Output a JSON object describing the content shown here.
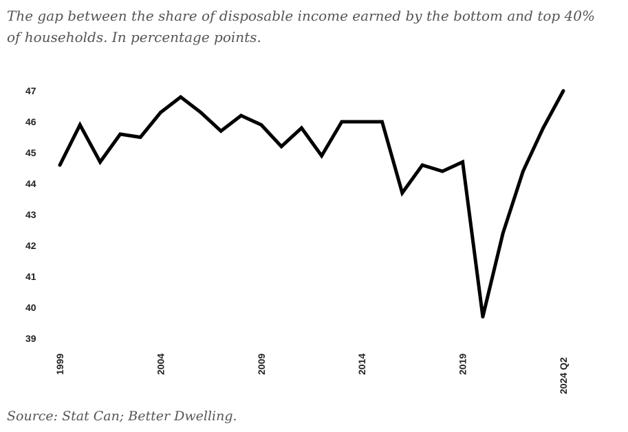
{
  "chart_data": {
    "type": "line",
    "title": "The gap between the share of disposable income earned by the bottom and top 40% of households. In percentage points.",
    "source": "Source: Stat Can; Better Dwelling.",
    "xlabel": "",
    "ylabel": "",
    "ylim": [
      39,
      47
    ],
    "yticks": [
      "47",
      "46",
      "45",
      "44",
      "43",
      "42",
      "41",
      "40",
      "39"
    ],
    "xtick_labels": [
      "1999",
      "2004",
      "2009",
      "2014",
      "2019",
      "2024 Q2"
    ],
    "grid": false,
    "legend": "none",
    "line_color": "#000000",
    "x": [
      1999,
      2000,
      2001,
      2002,
      2003,
      2004,
      2005,
      2006,
      2007,
      2008,
      2009,
      2010,
      2011,
      2012,
      2013,
      2014,
      2015,
      2016,
      2017,
      2018,
      2019,
      2020,
      2021,
      2022,
      2023,
      2024
    ],
    "x_display": [
      "1999",
      "2000",
      "2001",
      "2002",
      "2003",
      "2004",
      "2005",
      "2006",
      "2007",
      "2008",
      "2009",
      "2010",
      "2011",
      "2012",
      "2013",
      "2014",
      "2015",
      "2016",
      "2017",
      "2018",
      "2019",
      "2020",
      "2021",
      "2022",
      "2023",
      "2024 Q2"
    ],
    "series": [
      {
        "values": [
          44.6,
          45.9,
          44.7,
          45.6,
          45.5,
          46.3,
          46.8,
          46.3,
          45.7,
          46.2,
          45.9,
          45.2,
          45.8,
          44.9,
          46.0,
          46.0,
          46.0,
          43.7,
          44.6,
          44.4,
          44.7,
          39.7,
          42.4,
          44.4,
          45.8,
          47.0
        ]
      }
    ]
  }
}
